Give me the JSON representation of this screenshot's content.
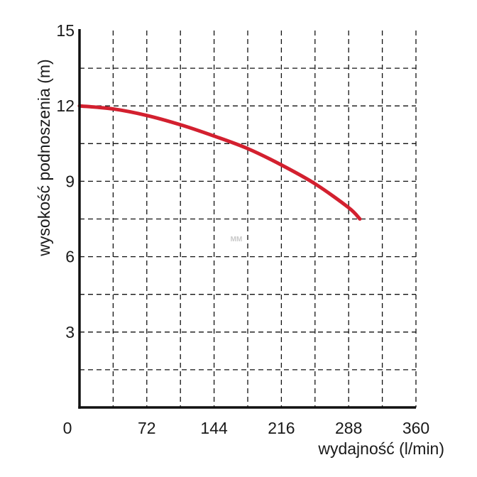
{
  "chart_data": {
    "type": "line",
    "xlabel": "wydajność (l/min)",
    "ylabel": "wysokość podnoszenia (m)",
    "xlim": [
      0,
      360
    ],
    "ylim": [
      0,
      15
    ],
    "x_ticks": [
      0,
      72,
      144,
      216,
      288,
      360
    ],
    "y_ticks": [
      3,
      6,
      9,
      12,
      15
    ],
    "x_grid_step": 36,
    "y_grid_step": 1.5,
    "grid": true,
    "series": [
      {
        "color": "#d3202f",
        "x": [
          0,
          36,
          72,
          108,
          144,
          180,
          216,
          252,
          288,
          300
        ],
        "y": [
          12.0,
          11.88,
          11.62,
          11.25,
          10.8,
          10.3,
          9.65,
          8.9,
          7.95,
          7.5
        ]
      }
    ]
  },
  "watermark": "MM"
}
